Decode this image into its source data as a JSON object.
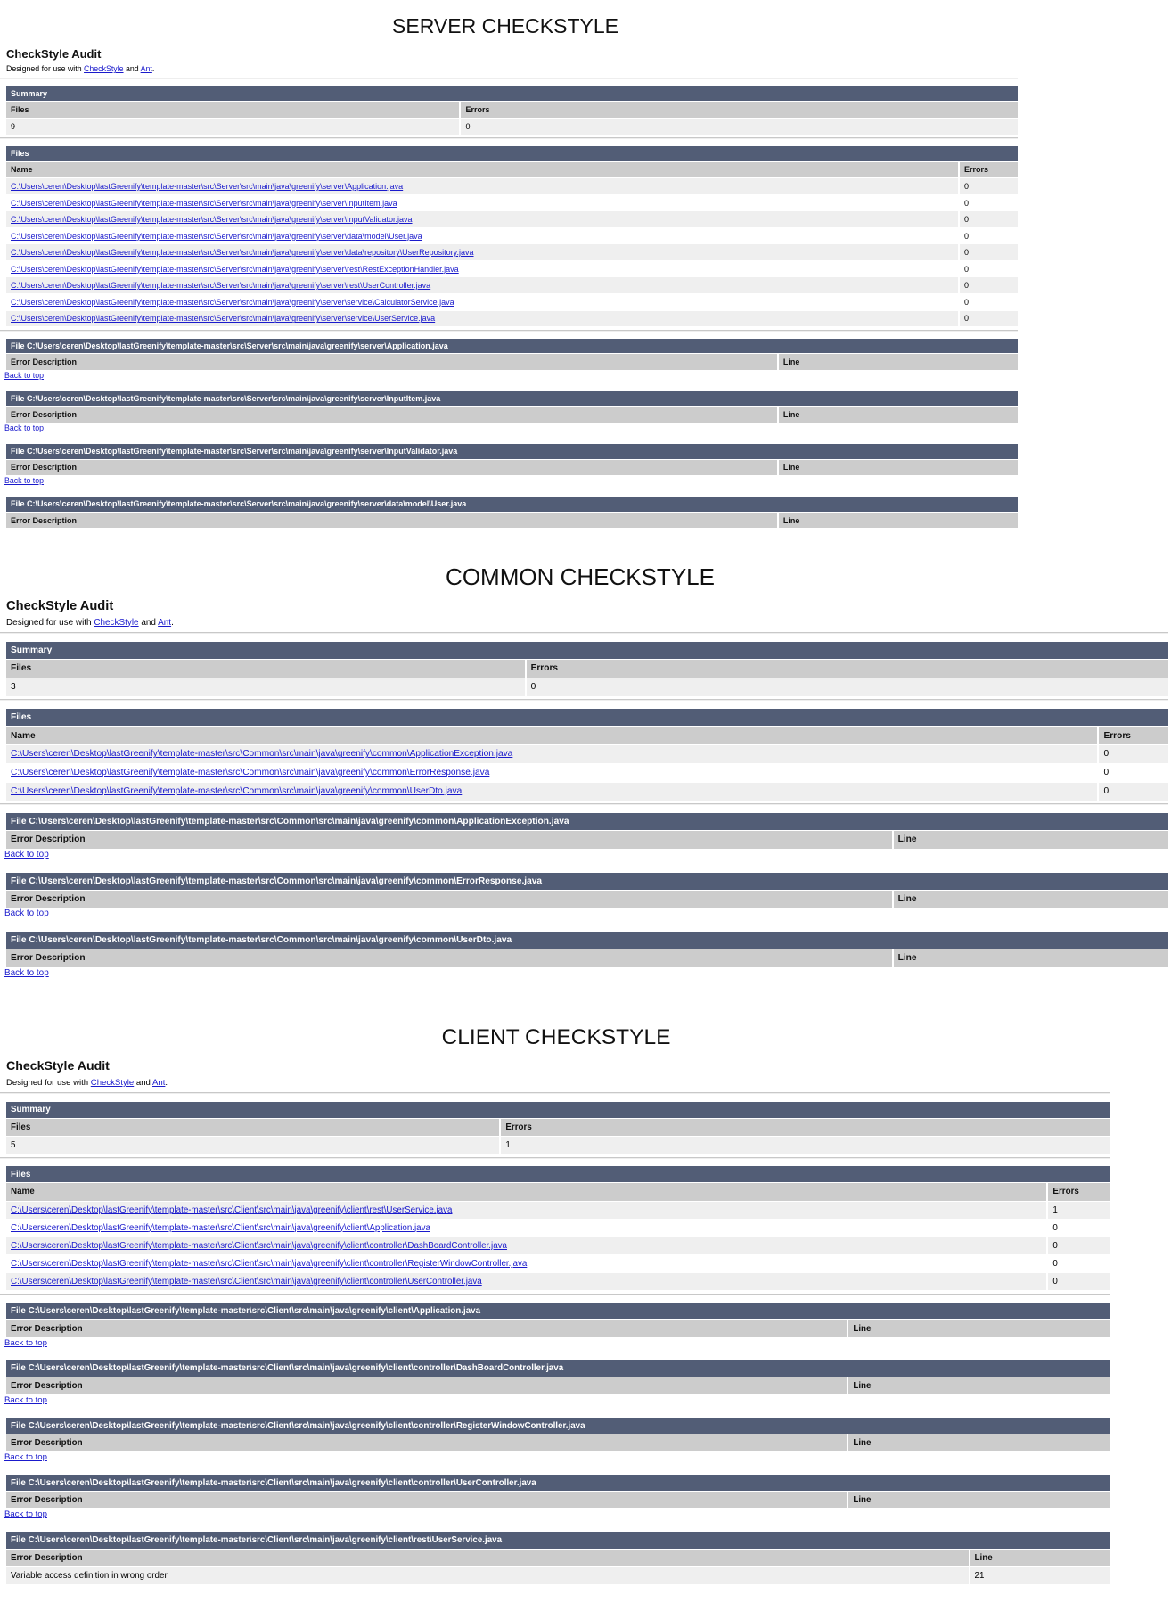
{
  "sections": [
    {
      "title": "SERVER CHECKSTYLE",
      "audit_title": "CheckStyle Audit",
      "designed_prefix": "Designed for use with ",
      "checkstyle_link": "CheckStyle",
      "and": " and ",
      "ant_link": "Ant",
      "period": ".",
      "summary": {
        "title": "Summary",
        "files_label": "Files",
        "errors_label": "Errors",
        "files": "9",
        "errors": "0"
      },
      "files": {
        "title": "Files",
        "name_label": "Name",
        "errors_label": "Errors",
        "rows": [
          {
            "name": "C:\\Users\\ceren\\Desktop\\lastGreenify\\template-master\\src\\Server\\src\\main\\java\\greenify\\server\\Application.java",
            "errors": "0"
          },
          {
            "name": "C:\\Users\\ceren\\Desktop\\lastGreenify\\template-master\\src\\Server\\src\\main\\java\\greenify\\server\\InputItem.java",
            "errors": "0"
          },
          {
            "name": "C:\\Users\\ceren\\Desktop\\lastGreenify\\template-master\\src\\Server\\src\\main\\java\\greenify\\server\\InputValidator.java",
            "errors": "0"
          },
          {
            "name": "C:\\Users\\ceren\\Desktop\\lastGreenify\\template-master\\src\\Server\\src\\main\\java\\greenify\\server\\data\\model\\User.java",
            "errors": "0"
          },
          {
            "name": "C:\\Users\\ceren\\Desktop\\lastGreenify\\template-master\\src\\Server\\src\\main\\java\\greenify\\server\\data\\repository\\UserRepository.java",
            "errors": "0"
          },
          {
            "name": "C:\\Users\\ceren\\Desktop\\lastGreenify\\template-master\\src\\Server\\src\\main\\java\\greenify\\server\\rest\\RestExceptionHandler.java",
            "errors": "0"
          },
          {
            "name": "C:\\Users\\ceren\\Desktop\\lastGreenify\\template-master\\src\\Server\\src\\main\\java\\greenify\\server\\rest\\UserController.java",
            "errors": "0"
          },
          {
            "name": "C:\\Users\\ceren\\Desktop\\lastGreenify\\template-master\\src\\Server\\src\\main\\java\\greenify\\server\\service\\CalculatorService.java",
            "errors": "0"
          },
          {
            "name": "C:\\Users\\ceren\\Desktop\\lastGreenify\\template-master\\src\\Server\\src\\main\\java\\greenify\\server\\service\\UserService.java",
            "errors": "0"
          }
        ]
      },
      "details": [
        {
          "header": "File C:\\Users\\ceren\\Desktop\\lastGreenify\\template-master\\src\\Server\\src\\main\\java\\greenify\\server\\Application.java",
          "desc_label": "Error Description",
          "line_label": "Line",
          "errors": [],
          "back_to_top": "Back to top"
        },
        {
          "header": "File C:\\Users\\ceren\\Desktop\\lastGreenify\\template-master\\src\\Server\\src\\main\\java\\greenify\\server\\InputItem.java",
          "desc_label": "Error Description",
          "line_label": "Line",
          "errors": [],
          "back_to_top": "Back to top"
        },
        {
          "header": "File C:\\Users\\ceren\\Desktop\\lastGreenify\\template-master\\src\\Server\\src\\main\\java\\greenify\\server\\InputValidator.java",
          "desc_label": "Error Description",
          "line_label": "Line",
          "errors": [],
          "back_to_top": "Back to top"
        },
        {
          "header": "File C:\\Users\\ceren\\Desktop\\lastGreenify\\template-master\\src\\Server\\src\\main\\java\\greenify\\server\\data\\model\\User.java",
          "desc_label": "Error Description",
          "line_label": "Line",
          "errors": []
        }
      ]
    },
    {
      "title": "COMMON CHECKSTYLE",
      "audit_title": "CheckStyle Audit",
      "designed_prefix": "Designed for use with ",
      "checkstyle_link": "CheckStyle",
      "and": " and ",
      "ant_link": "Ant",
      "period": ".",
      "summary": {
        "title": "Summary",
        "files_label": "Files",
        "errors_label": "Errors",
        "files": "3",
        "errors": "0"
      },
      "files": {
        "title": "Files",
        "name_label": "Name",
        "errors_label": "Errors",
        "rows": [
          {
            "name": "C:\\Users\\ceren\\Desktop\\lastGreenify\\template-master\\src\\Common\\src\\main\\java\\greenify\\common\\ApplicationException.java",
            "errors": "0"
          },
          {
            "name": "C:\\Users\\ceren\\Desktop\\lastGreenify\\template-master\\src\\Common\\src\\main\\java\\greenify\\common\\ErrorResponse.java",
            "errors": "0"
          },
          {
            "name": "C:\\Users\\ceren\\Desktop\\lastGreenify\\template-master\\src\\Common\\src\\main\\java\\greenify\\common\\UserDto.java",
            "errors": "0"
          }
        ]
      },
      "details": [
        {
          "header": "File C:\\Users\\ceren\\Desktop\\lastGreenify\\template-master\\src\\Common\\src\\main\\java\\greenify\\common\\ApplicationException.java",
          "desc_label": "Error Description",
          "line_label": "Line",
          "errors": [],
          "back_to_top": "Back to top"
        },
        {
          "header": "File C:\\Users\\ceren\\Desktop\\lastGreenify\\template-master\\src\\Common\\src\\main\\java\\greenify\\common\\ErrorResponse.java",
          "desc_label": "Error Description",
          "line_label": "Line",
          "errors": [],
          "back_to_top": "Back to top"
        },
        {
          "header": "File C:\\Users\\ceren\\Desktop\\lastGreenify\\template-master\\src\\Common\\src\\main\\java\\greenify\\common\\UserDto.java",
          "desc_label": "Error Description",
          "line_label": "Line",
          "errors": [],
          "back_to_top": "Back to top"
        }
      ]
    },
    {
      "title": "CLIENT CHECKSTYLE",
      "audit_title": "CheckStyle Audit",
      "designed_prefix": "Designed for use with ",
      "checkstyle_link": "CheckStyle",
      "and": " and ",
      "ant_link": "Ant",
      "period": ".",
      "summary": {
        "title": "Summary",
        "files_label": "Files",
        "errors_label": "Errors",
        "files": "5",
        "errors": "1"
      },
      "files": {
        "title": "Files",
        "name_label": "Name",
        "errors_label": "Errors",
        "rows": [
          {
            "name": "C:\\Users\\ceren\\Desktop\\lastGreenify\\template-master\\src\\Client\\src\\main\\java\\greenify\\client\\rest\\UserService.java",
            "errors": "1"
          },
          {
            "name": "C:\\Users\\ceren\\Desktop\\lastGreenify\\template-master\\src\\Client\\src\\main\\java\\greenify\\client\\Application.java",
            "errors": "0"
          },
          {
            "name": "C:\\Users\\ceren\\Desktop\\lastGreenify\\template-master\\src\\Client\\src\\main\\java\\greenify\\client\\controller\\DashBoardController.java",
            "errors": "0"
          },
          {
            "name": "C:\\Users\\ceren\\Desktop\\lastGreenify\\template-master\\src\\Client\\src\\main\\java\\greenify\\client\\controller\\RegisterWindowController.java",
            "errors": "0"
          },
          {
            "name": "C:\\Users\\ceren\\Desktop\\lastGreenify\\template-master\\src\\Client\\src\\main\\java\\greenify\\client\\controller\\UserController.java",
            "errors": "0"
          }
        ]
      },
      "details": [
        {
          "header": "File C:\\Users\\ceren\\Desktop\\lastGreenify\\template-master\\src\\Client\\src\\main\\java\\greenify\\client\\Application.java",
          "desc_label": "Error Description",
          "line_label": "Line",
          "errors": [],
          "back_to_top": "Back to top"
        },
        {
          "header": "File C:\\Users\\ceren\\Desktop\\lastGreenify\\template-master\\src\\Client\\src\\main\\java\\greenify\\client\\controller\\DashBoardController.java",
          "desc_label": "Error Description",
          "line_label": "Line",
          "errors": [],
          "back_to_top": "Back to top"
        },
        {
          "header": "File C:\\Users\\ceren\\Desktop\\lastGreenify\\template-master\\src\\Client\\src\\main\\java\\greenify\\client\\controller\\RegisterWindowController.java",
          "desc_label": "Error Description",
          "line_label": "Line",
          "errors": [],
          "back_to_top": "Back to top"
        },
        {
          "header": "File C:\\Users\\ceren\\Desktop\\lastGreenify\\template-master\\src\\Client\\src\\main\\java\\greenify\\client\\controller\\UserController.java",
          "desc_label": "Error Description",
          "line_label": "Line",
          "errors": [],
          "back_to_top": "Back to top"
        },
        {
          "header": "File C:\\Users\\ceren\\Desktop\\lastGreenify\\template-master\\src\\Client\\src\\main\\java\\greenify\\client\\rest\\UserService.java",
          "desc_label": "Error Description",
          "line_label": "Line",
          "errors": [
            {
              "description": "Variable access definition in wrong order",
              "line": "21"
            }
          ]
        }
      ]
    }
  ],
  "colors": {
    "header_bar": "#525D76",
    "column_header": "#CCCCCC",
    "row_alt": "#EFEFEF",
    "link": "#1a1acc"
  }
}
